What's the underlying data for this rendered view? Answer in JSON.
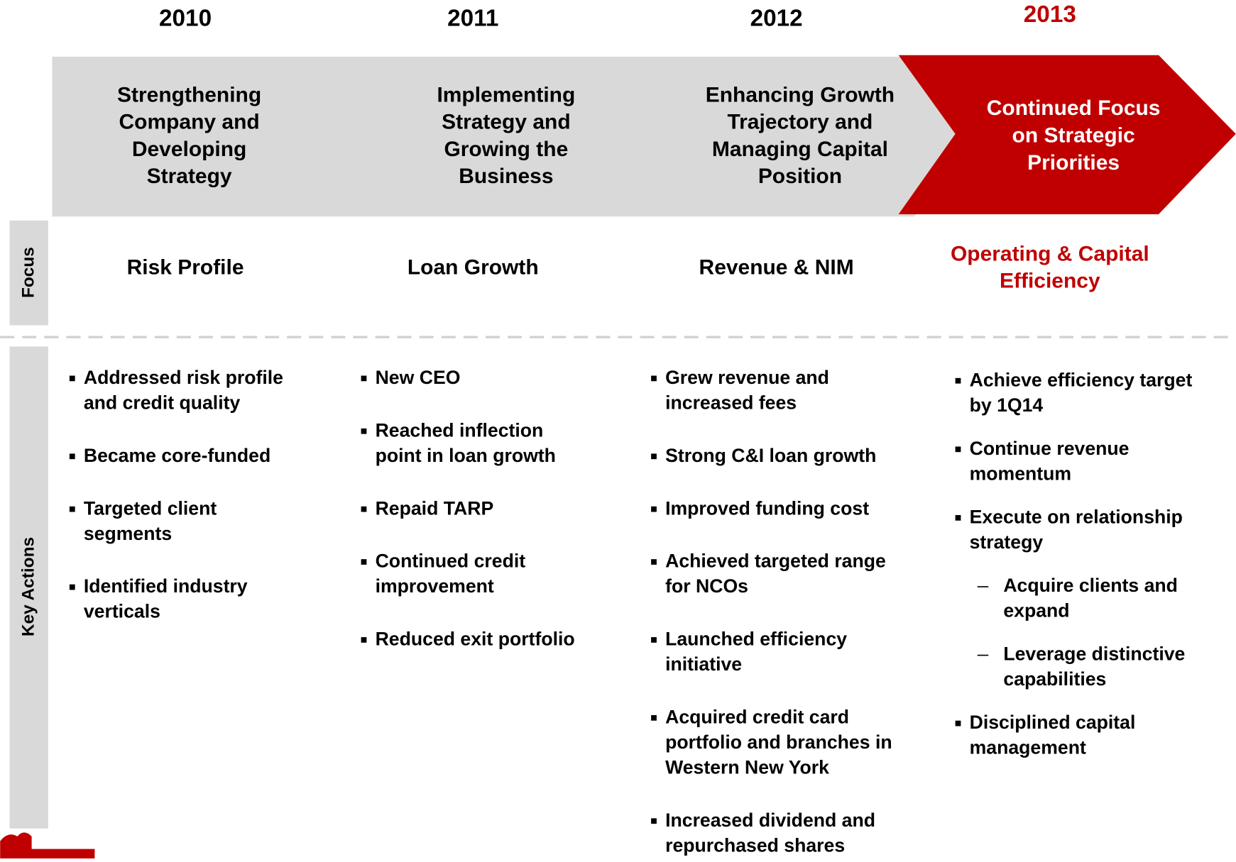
{
  "side_labels": {
    "focus": "Focus",
    "actions": "Key Actions"
  },
  "columns": [
    {
      "year": "2010",
      "color": "#d9d9d9",
      "text_color": "#000000",
      "title": [
        "Strengthening",
        "Company and",
        "Developing",
        "Strategy"
      ],
      "focus": [
        "Risk Profile"
      ],
      "actions": [
        {
          "lines": [
            "Addressed risk profile",
            "and credit quality"
          ]
        },
        {
          "lines": [
            "Became core-funded"
          ]
        },
        {
          "lines": [
            "Targeted client",
            "segments"
          ]
        },
        {
          "lines": [
            "Identified industry",
            "verticals"
          ]
        }
      ]
    },
    {
      "year": "2011",
      "color": "#d9d9d9",
      "text_color": "#000000",
      "title": [
        "Implementing",
        "Strategy and",
        "Growing the",
        "Business"
      ],
      "focus": [
        "Loan Growth"
      ],
      "actions": [
        {
          "lines": [
            "New CEO"
          ]
        },
        {
          "lines": [
            "Reached inflection",
            "point in loan growth"
          ]
        },
        {
          "lines": [
            "Repaid TARP"
          ]
        },
        {
          "lines": [
            "Continued credit",
            "improvement"
          ]
        },
        {
          "lines": [
            "Reduced exit portfolio"
          ]
        }
      ]
    },
    {
      "year": "2012",
      "color": "#d9d9d9",
      "text_color": "#000000",
      "title": [
        "Enhancing Growth",
        "Trajectory and",
        "Managing Capital",
        "Position"
      ],
      "focus": [
        "Revenue & NIM"
      ],
      "actions": [
        {
          "lines": [
            "Grew revenue and",
            "increased fees"
          ]
        },
        {
          "lines": [
            "Strong C&I loan growth"
          ]
        },
        {
          "lines": [
            "Improved funding cost"
          ]
        },
        {
          "lines": [
            "Achieved targeted range",
            "for NCOs"
          ]
        },
        {
          "lines": [
            "Launched efficiency",
            "initiative"
          ]
        },
        {
          "lines": [
            "Acquired credit card",
            "portfolio and branches in",
            "Western New York"
          ]
        },
        {
          "lines": [
            "Increased dividend and",
            "repurchased shares"
          ]
        }
      ]
    },
    {
      "year": "2013",
      "color": "#c00000",
      "text_color": "#c00000",
      "title": [
        "Continued Focus",
        "on Strategic",
        "Priorities"
      ],
      "focus": [
        "Operating & Capital",
        "Efficiency"
      ],
      "actions": [
        {
          "lines": [
            "Achieve efficiency target",
            "by 1Q14"
          ]
        },
        {
          "lines": [
            "Continue revenue",
            "momentum"
          ]
        },
        {
          "lines": [
            "Execute on relationship",
            "strategy"
          ]
        },
        {
          "lines": [
            "Acquire clients and",
            "expand"
          ],
          "sub": true
        },
        {
          "lines": [
            "Leverage distinctive",
            "capabilities"
          ],
          "sub": true
        },
        {
          "lines": [
            "Disciplined capital",
            "management"
          ]
        }
      ]
    }
  ]
}
